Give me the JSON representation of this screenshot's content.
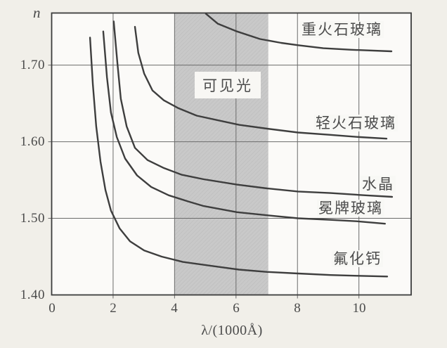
{
  "figure": {
    "description_labels": {
      "y_axis": "n",
      "x_axis": "λ/(1000Å)",
      "visible_light_band": "可见光"
    }
  },
  "chart_data": {
    "type": "line",
    "title": "",
    "xlabel": "λ/(1000Å)",
    "ylabel": "n",
    "xlim": [
      0,
      11.7
    ],
    "ylim": [
      1.4,
      1.768
    ],
    "grid": true,
    "x_ticks": [
      0,
      2,
      4,
      6,
      8,
      10
    ],
    "x_tick_labels": [
      "0",
      "2",
      "4",
      "6",
      "8",
      "10"
    ],
    "y_ticks": [
      1.4,
      1.5,
      1.6,
      1.7
    ],
    "y_tick_labels_top_down": [
      "1.70",
      "1.60",
      "1.50",
      "1.40"
    ],
    "band": {
      "label": "可见光",
      "meaning": "visible light range",
      "x_start": 4.0,
      "x_end": 7.05
    },
    "series": [
      {
        "key": "heavy_flint_glass",
        "name": "重火石玻璃",
        "points": [
          [
            5.02,
            1.767
          ],
          [
            5.41,
            1.754
          ],
          [
            6.03,
            1.744
          ],
          [
            6.78,
            1.734
          ],
          [
            7.47,
            1.729
          ],
          [
            8.02,
            1.726
          ],
          [
            8.84,
            1.722
          ],
          [
            9.76,
            1.72
          ],
          [
            11.06,
            1.718
          ]
        ]
      },
      {
        "key": "light_flint_glass",
        "name": "轻火石玻璃",
        "points": [
          [
            2.71,
            1.75
          ],
          [
            2.82,
            1.716
          ],
          [
            3.01,
            1.689
          ],
          [
            3.28,
            1.667
          ],
          [
            3.65,
            1.654
          ],
          [
            4.11,
            1.644
          ],
          [
            4.72,
            1.634
          ],
          [
            5.41,
            1.628
          ],
          [
            6.1,
            1.622
          ],
          [
            7.01,
            1.617
          ],
          [
            8.02,
            1.612
          ],
          [
            9.07,
            1.609
          ],
          [
            10.03,
            1.606
          ],
          [
            10.9,
            1.604
          ]
        ]
      },
      {
        "key": "quartz_crystal",
        "name": "水晶",
        "points": [
          [
            2.02,
            1.757
          ],
          [
            2.14,
            1.702
          ],
          [
            2.25,
            1.656
          ],
          [
            2.44,
            1.62
          ],
          [
            2.71,
            1.592
          ],
          [
            3.12,
            1.576
          ],
          [
            3.63,
            1.566
          ],
          [
            4.22,
            1.557
          ],
          [
            4.95,
            1.551
          ],
          [
            6.03,
            1.544
          ],
          [
            7.01,
            1.539
          ],
          [
            8.02,
            1.535
          ],
          [
            9.07,
            1.533
          ],
          [
            10.21,
            1.53
          ],
          [
            11.08,
            1.528
          ]
        ]
      },
      {
        "key": "crown_glass",
        "name": "冕牌玻璃",
        "points": [
          [
            1.68,
            1.744
          ],
          [
            1.8,
            1.684
          ],
          [
            1.93,
            1.638
          ],
          [
            2.12,
            1.606
          ],
          [
            2.39,
            1.578
          ],
          [
            2.78,
            1.556
          ],
          [
            3.24,
            1.541
          ],
          [
            3.81,
            1.53
          ],
          [
            4.45,
            1.522
          ],
          [
            4.95,
            1.516
          ],
          [
            6.03,
            1.508
          ],
          [
            7.01,
            1.504
          ],
          [
            8.02,
            1.5
          ],
          [
            9.07,
            1.498
          ],
          [
            9.98,
            1.496
          ],
          [
            10.85,
            1.493
          ]
        ]
      },
      {
        "key": "calcium_fluoride",
        "name": "氟化钙",
        "points": [
          [
            1.25,
            1.736
          ],
          [
            1.34,
            1.675
          ],
          [
            1.45,
            1.62
          ],
          [
            1.59,
            1.574
          ],
          [
            1.75,
            1.537
          ],
          [
            1.93,
            1.51
          ],
          [
            2.21,
            1.487
          ],
          [
            2.55,
            1.47
          ],
          [
            3.01,
            1.458
          ],
          [
            3.58,
            1.45
          ],
          [
            4.27,
            1.443
          ],
          [
            5.18,
            1.438
          ],
          [
            6.1,
            1.433
          ],
          [
            7.01,
            1.43
          ],
          [
            8.02,
            1.428
          ],
          [
            9.07,
            1.426
          ],
          [
            9.98,
            1.425
          ],
          [
            10.92,
            1.424
          ]
        ]
      }
    ],
    "style_colors": {
      "curve": "#3e3e3e",
      "grid": "#6b6b6b",
      "border": "#3c3c3c",
      "band_fill": "#c9c9c9",
      "page_background": "#f1efe9"
    }
  }
}
